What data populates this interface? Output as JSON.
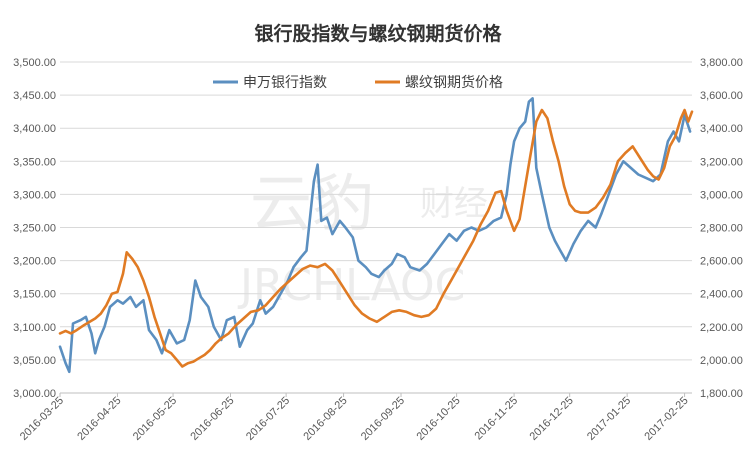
{
  "chart_data": {
    "type": "line",
    "title": "银行股指数与螺纹钢期货价格",
    "legend_position": "top",
    "grid": true,
    "x": [
      "2016-03-25",
      "2016-04-25",
      "2016-05-25",
      "2016-06-25",
      "2016-07-25",
      "2016-08-25",
      "2016-09-25",
      "2016-10-25",
      "2016-11-25",
      "2016-12-25",
      "2017-01-25",
      "2017-02-25"
    ],
    "x_tick_labels": [
      "2016-03-25",
      "2016-04-25",
      "2016-05-25",
      "2016-06-25",
      "2016-07-25",
      "2016-08-25",
      "2016-09-25",
      "2016-10-25",
      "2016-11-25",
      "2016-12-25",
      "2017-01-25",
      "2017-02-25"
    ],
    "xlim": [
      "2016-03-25",
      "2017-03-01"
    ],
    "y_left": {
      "ylim": [
        3000,
        3500
      ],
      "ticks": [
        "3,000.00",
        "3,050.00",
        "3,100.00",
        "3,150.00",
        "3,200.00",
        "3,250.00",
        "3,300.00",
        "3,350.00",
        "3,400.00",
        "3,450.00",
        "3,500.00"
      ]
    },
    "y_right": {
      "ylim": [
        1800,
        3800
      ],
      "ticks": [
        "1,800.00",
        "2,000.00",
        "2,200.00",
        "2,400.00",
        "2,600.00",
        "2,800.00",
        "3,000.00",
        "3,200.00",
        "3,400.00",
        "3,600.00",
        "3,800.00"
      ]
    },
    "series": [
      {
        "name": "申万银行指数",
        "axis": "left",
        "color": "#5b8fc0",
        "points": [
          [
            "2016-03-25",
            3070
          ],
          [
            "2016-03-28",
            3045
          ],
          [
            "2016-03-30",
            3032
          ],
          [
            "2016-04-01",
            3105
          ],
          [
            "2016-04-05",
            3110
          ],
          [
            "2016-04-08",
            3115
          ],
          [
            "2016-04-11",
            3090
          ],
          [
            "2016-04-13",
            3060
          ],
          [
            "2016-04-15",
            3080
          ],
          [
            "2016-04-18",
            3100
          ],
          [
            "2016-04-21",
            3130
          ],
          [
            "2016-04-25",
            3140
          ],
          [
            "2016-04-28",
            3135
          ],
          [
            "2016-05-02",
            3145
          ],
          [
            "2016-05-05",
            3130
          ],
          [
            "2016-05-09",
            3140
          ],
          [
            "2016-05-12",
            3095
          ],
          [
            "2016-05-16",
            3080
          ],
          [
            "2016-05-19",
            3060
          ],
          [
            "2016-05-23",
            3095
          ],
          [
            "2016-05-27",
            3075
          ],
          [
            "2016-05-31",
            3080
          ],
          [
            "2016-06-03",
            3110
          ],
          [
            "2016-06-06",
            3170
          ],
          [
            "2016-06-09",
            3145
          ],
          [
            "2016-06-13",
            3130
          ],
          [
            "2016-06-16",
            3100
          ],
          [
            "2016-06-20",
            3080
          ],
          [
            "2016-06-23",
            3110
          ],
          [
            "2016-06-27",
            3115
          ],
          [
            "2016-06-30",
            3070
          ],
          [
            "2016-07-04",
            3095
          ],
          [
            "2016-07-07",
            3105
          ],
          [
            "2016-07-11",
            3140
          ],
          [
            "2016-07-14",
            3120
          ],
          [
            "2016-07-18",
            3130
          ],
          [
            "2016-07-22",
            3150
          ],
          [
            "2016-07-26",
            3170
          ],
          [
            "2016-07-29",
            3190
          ],
          [
            "2016-08-02",
            3205
          ],
          [
            "2016-08-05",
            3215
          ],
          [
            "2016-08-09",
            3320
          ],
          [
            "2016-08-11",
            3345
          ],
          [
            "2016-08-13",
            3260
          ],
          [
            "2016-08-16",
            3265
          ],
          [
            "2016-08-19",
            3240
          ],
          [
            "2016-08-23",
            3260
          ],
          [
            "2016-08-26",
            3250
          ],
          [
            "2016-08-30",
            3235
          ],
          [
            "2016-09-02",
            3200
          ],
          [
            "2016-09-06",
            3190
          ],
          [
            "2016-09-09",
            3180
          ],
          [
            "2016-09-13",
            3175
          ],
          [
            "2016-09-16",
            3185
          ],
          [
            "2016-09-20",
            3195
          ],
          [
            "2016-09-23",
            3210
          ],
          [
            "2016-09-27",
            3205
          ],
          [
            "2016-09-30",
            3190
          ],
          [
            "2016-10-05",
            3185
          ],
          [
            "2016-10-09",
            3195
          ],
          [
            "2016-10-13",
            3210
          ],
          [
            "2016-10-17",
            3225
          ],
          [
            "2016-10-21",
            3240
          ],
          [
            "2016-10-25",
            3230
          ],
          [
            "2016-10-29",
            3245
          ],
          [
            "2016-11-02",
            3250
          ],
          [
            "2016-11-06",
            3245
          ],
          [
            "2016-11-10",
            3250
          ],
          [
            "2016-11-14",
            3260
          ],
          [
            "2016-11-18",
            3265
          ],
          [
            "2016-11-21",
            3300
          ],
          [
            "2016-11-23",
            3345
          ],
          [
            "2016-11-25",
            3380
          ],
          [
            "2016-11-28",
            3400
          ],
          [
            "2016-12-01",
            3410
          ],
          [
            "2016-12-03",
            3440
          ],
          [
            "2016-12-05",
            3445
          ],
          [
            "2016-12-07",
            3340
          ],
          [
            "2016-12-10",
            3300
          ],
          [
            "2016-12-14",
            3250
          ],
          [
            "2016-12-17",
            3230
          ],
          [
            "2016-12-20",
            3215
          ],
          [
            "2016-12-23",
            3200
          ],
          [
            "2016-12-27",
            3225
          ],
          [
            "2016-12-31",
            3245
          ],
          [
            "2017-01-04",
            3260
          ],
          [
            "2017-01-08",
            3250
          ],
          [
            "2017-01-11",
            3270
          ],
          [
            "2017-01-15",
            3300
          ],
          [
            "2017-01-19",
            3330
          ],
          [
            "2017-01-23",
            3350
          ],
          [
            "2017-01-27",
            3340
          ],
          [
            "2017-01-31",
            3330
          ],
          [
            "2017-02-04",
            3325
          ],
          [
            "2017-02-08",
            3320
          ],
          [
            "2017-02-12",
            3330
          ],
          [
            "2017-02-16",
            3380
          ],
          [
            "2017-02-19",
            3395
          ],
          [
            "2017-02-22",
            3380
          ],
          [
            "2017-02-25",
            3420
          ],
          [
            "2017-02-28",
            3395
          ]
        ]
      },
      {
        "name": "螺纹钢期货价格",
        "axis": "right",
        "color": "#e07b24",
        "points": [
          [
            "2016-03-25",
            2160
          ],
          [
            "2016-03-28",
            2175
          ],
          [
            "2016-03-31",
            2160
          ],
          [
            "2016-04-03",
            2180
          ],
          [
            "2016-04-07",
            2210
          ],
          [
            "2016-04-10",
            2230
          ],
          [
            "2016-04-13",
            2250
          ],
          [
            "2016-04-16",
            2280
          ],
          [
            "2016-04-19",
            2330
          ],
          [
            "2016-04-22",
            2400
          ],
          [
            "2016-04-25",
            2410
          ],
          [
            "2016-04-28",
            2520
          ],
          [
            "2016-04-30",
            2650
          ],
          [
            "2016-05-03",
            2610
          ],
          [
            "2016-05-06",
            2560
          ],
          [
            "2016-05-09",
            2480
          ],
          [
            "2016-05-12",
            2380
          ],
          [
            "2016-05-15",
            2260
          ],
          [
            "2016-05-18",
            2160
          ],
          [
            "2016-05-21",
            2060
          ],
          [
            "2016-05-24",
            2040
          ],
          [
            "2016-05-27",
            2000
          ],
          [
            "2016-05-30",
            1960
          ],
          [
            "2016-06-02",
            1980
          ],
          [
            "2016-06-05",
            1990
          ],
          [
            "2016-06-08",
            2010
          ],
          [
            "2016-06-11",
            2030
          ],
          [
            "2016-06-14",
            2060
          ],
          [
            "2016-06-17",
            2100
          ],
          [
            "2016-06-20",
            2130
          ],
          [
            "2016-06-24",
            2160
          ],
          [
            "2016-06-28",
            2210
          ],
          [
            "2016-07-02",
            2250
          ],
          [
            "2016-07-06",
            2290
          ],
          [
            "2016-07-10",
            2300
          ],
          [
            "2016-07-14",
            2330
          ],
          [
            "2016-07-18",
            2380
          ],
          [
            "2016-07-22",
            2430
          ],
          [
            "2016-07-26",
            2470
          ],
          [
            "2016-07-30",
            2510
          ],
          [
            "2016-08-03",
            2550
          ],
          [
            "2016-08-07",
            2570
          ],
          [
            "2016-08-11",
            2560
          ],
          [
            "2016-08-15",
            2580
          ],
          [
            "2016-08-19",
            2540
          ],
          [
            "2016-08-23",
            2470
          ],
          [
            "2016-08-27",
            2400
          ],
          [
            "2016-08-31",
            2330
          ],
          [
            "2016-09-04",
            2280
          ],
          [
            "2016-09-08",
            2250
          ],
          [
            "2016-09-12",
            2230
          ],
          [
            "2016-09-16",
            2260
          ],
          [
            "2016-09-20",
            2290
          ],
          [
            "2016-09-24",
            2300
          ],
          [
            "2016-09-28",
            2290
          ],
          [
            "2016-10-02",
            2270
          ],
          [
            "2016-10-06",
            2260
          ],
          [
            "2016-10-10",
            2270
          ],
          [
            "2016-10-14",
            2310
          ],
          [
            "2016-10-18",
            2400
          ],
          [
            "2016-10-22",
            2480
          ],
          [
            "2016-10-26",
            2560
          ],
          [
            "2016-10-30",
            2640
          ],
          [
            "2016-11-03",
            2720
          ],
          [
            "2016-11-07",
            2820
          ],
          [
            "2016-11-11",
            2900
          ],
          [
            "2016-11-15",
            3010
          ],
          [
            "2016-11-18",
            3020
          ],
          [
            "2016-11-21",
            2900
          ],
          [
            "2016-11-25",
            2780
          ],
          [
            "2016-11-28",
            2850
          ],
          [
            "2016-12-01",
            3050
          ],
          [
            "2016-12-04",
            3250
          ],
          [
            "2016-12-07",
            3440
          ],
          [
            "2016-12-10",
            3510
          ],
          [
            "2016-12-13",
            3460
          ],
          [
            "2016-12-16",
            3320
          ],
          [
            "2016-12-19",
            3200
          ],
          [
            "2016-12-22",
            3050
          ],
          [
            "2016-12-25",
            2940
          ],
          [
            "2016-12-28",
            2900
          ],
          [
            "2016-12-31",
            2890
          ],
          [
            "2017-01-04",
            2890
          ],
          [
            "2017-01-08",
            2920
          ],
          [
            "2017-01-12",
            2980
          ],
          [
            "2017-01-16",
            3060
          ],
          [
            "2017-01-20",
            3200
          ],
          [
            "2017-01-24",
            3250
          ],
          [
            "2017-01-28",
            3290
          ],
          [
            "2017-02-01",
            3220
          ],
          [
            "2017-02-05",
            3150
          ],
          [
            "2017-02-08",
            3110
          ],
          [
            "2017-02-11",
            3090
          ],
          [
            "2017-02-14",
            3160
          ],
          [
            "2017-02-17",
            3290
          ],
          [
            "2017-02-20",
            3350
          ],
          [
            "2017-02-23",
            3460
          ],
          [
            "2017-02-25",
            3510
          ],
          [
            "2017-02-27",
            3440
          ],
          [
            "2017-03-01",
            3500
          ]
        ]
      }
    ]
  }
}
